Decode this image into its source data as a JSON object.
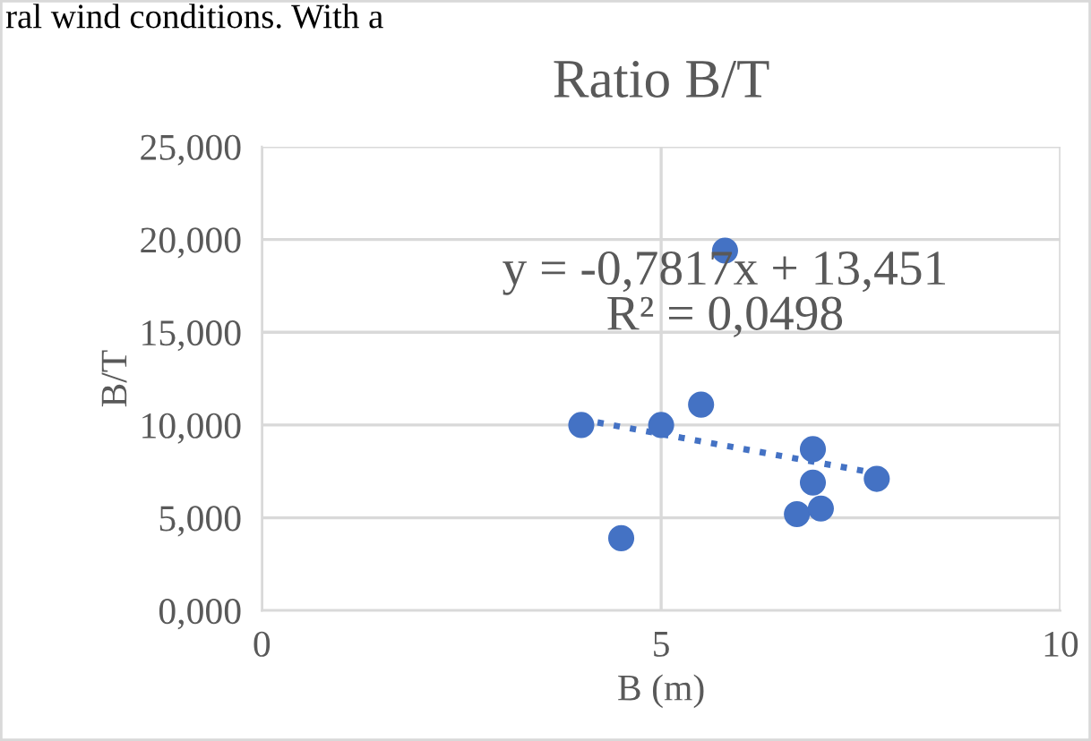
{
  "chart_data": {
    "type": "scatter",
    "title": "Ratio B/T",
    "xlabel": "B (m)",
    "ylabel": "B/T",
    "series": [
      {
        "color": "#4472c4",
        "x": [
          4.0,
          4.5,
          5.0,
          5.5,
          5.8,
          6.9,
          6.9,
          6.7,
          7.0,
          7.7
        ],
        "values": [
          10.0,
          3.9,
          10.0,
          11.1,
          19.4,
          8.7,
          6.9,
          5.2,
          5.5,
          7.1
        ],
        "marker": "circle"
      },
      {
        "type": "line",
        "color": "#4472c4",
        "x": [
          4.0,
          7.7
        ],
        "values": [
          10.3,
          7.4
        ],
        "line_style": "dotted",
        "marker": "none"
      }
    ],
    "xlim": [
      0,
      10
    ],
    "xticks": [
      0,
      5,
      10
    ],
    "ylim": [
      0,
      25
    ],
    "yticks": [
      {
        "value": 0,
        "label": "0,000"
      },
      {
        "value": 5,
        "label": "5,000"
      },
      {
        "value": 10,
        "label": "10,000"
      },
      {
        "value": 15,
        "label": "15,000"
      },
      {
        "value": 20,
        "label": "20,000"
      },
      {
        "value": 25,
        "label": "25,000"
      }
    ],
    "grid": true,
    "legend": false,
    "annotations": [
      "ral wind conditions. With a",
      "y = -0,7817x + 13,451\nR² = 0,0498"
    ]
  }
}
